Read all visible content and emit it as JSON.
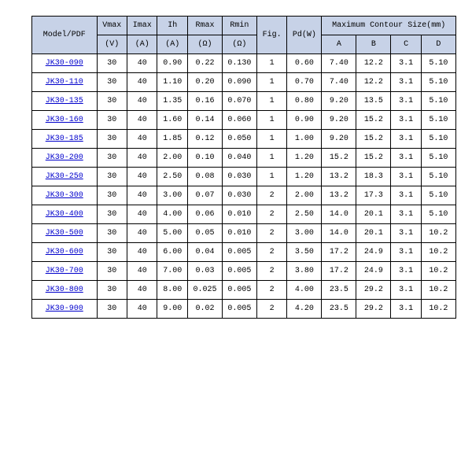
{
  "colors": {
    "header_bg": "#c7d2e7",
    "border": "#000000",
    "link": "#0000cc",
    "background": "#ffffff"
  },
  "header": {
    "model": "Model/PDF",
    "vmax": "Vmax",
    "vmax_unit": "(V)",
    "imax": "Imax",
    "imax_unit": "(A)",
    "ih": "Ih",
    "ih_unit": "(A)",
    "rmax": "Rmax",
    "rmax_unit": "(Ω)",
    "rmin": "Rmin",
    "rmin_unit": "(Ω)",
    "fig": "Fig.",
    "pd": "Pd(W)",
    "contour": "Maximum Contour Size(mm)",
    "a": "A",
    "b": "B",
    "c": "C",
    "d": "D"
  },
  "rows": [
    {
      "model": "JK30-090",
      "vmax": "30",
      "imax": "40",
      "ih": "0.90",
      "rmax": "0.22",
      "rmin": "0.130",
      "fig": "1",
      "pd": "0.60",
      "a": "7.40",
      "b": "12.2",
      "c": "3.1",
      "d": "5.10"
    },
    {
      "model": "JK30-110",
      "vmax": "30",
      "imax": "40",
      "ih": "1.10",
      "rmax": "0.20",
      "rmin": "0.090",
      "fig": "1",
      "pd": "0.70",
      "a": "7.40",
      "b": "12.2",
      "c": "3.1",
      "d": "5.10"
    },
    {
      "model": "JK30-135",
      "vmax": "30",
      "imax": "40",
      "ih": "1.35",
      "rmax": "0.16",
      "rmin": "0.070",
      "fig": "1",
      "pd": "0.80",
      "a": "9.20",
      "b": "13.5",
      "c": "3.1",
      "d": "5.10"
    },
    {
      "model": "JK30-160",
      "vmax": "30",
      "imax": "40",
      "ih": "1.60",
      "rmax": "0.14",
      "rmin": "0.060",
      "fig": "1",
      "pd": "0.90",
      "a": "9.20",
      "b": "15.2",
      "c": "3.1",
      "d": "5.10"
    },
    {
      "model": "JK30-185",
      "vmax": "30",
      "imax": "40",
      "ih": "1.85",
      "rmax": "0.12",
      "rmin": "0.050",
      "fig": "1",
      "pd": "1.00",
      "a": "9.20",
      "b": "15.2",
      "c": "3.1",
      "d": "5.10"
    },
    {
      "model": "JK30-200",
      "vmax": "30",
      "imax": "40",
      "ih": "2.00",
      "rmax": "0.10",
      "rmin": "0.040",
      "fig": "1",
      "pd": "1.20",
      "a": "15.2",
      "b": "15.2",
      "c": "3.1",
      "d": "5.10"
    },
    {
      "model": "JK30-250",
      "vmax": "30",
      "imax": "40",
      "ih": "2.50",
      "rmax": "0.08",
      "rmin": "0.030",
      "fig": "1",
      "pd": "1.20",
      "a": "13.2",
      "b": "18.3",
      "c": "3.1",
      "d": "5.10"
    },
    {
      "model": "JK30-300",
      "vmax": "30",
      "imax": "40",
      "ih": "3.00",
      "rmax": "0.07",
      "rmin": "0.030",
      "fig": "2",
      "pd": "2.00",
      "a": "13.2",
      "b": "17.3",
      "c": "3.1",
      "d": "5.10"
    },
    {
      "model": "JK30-400",
      "vmax": "30",
      "imax": "40",
      "ih": "4.00",
      "rmax": "0.06",
      "rmin": "0.010",
      "fig": "2",
      "pd": "2.50",
      "a": "14.0",
      "b": "20.1",
      "c": "3.1",
      "d": "5.10"
    },
    {
      "model": "JK30-500",
      "vmax": "30",
      "imax": "40",
      "ih": "5.00",
      "rmax": "0.05",
      "rmin": "0.010",
      "fig": "2",
      "pd": "3.00",
      "a": "14.0",
      "b": "20.1",
      "c": "3.1",
      "d": "10.2"
    },
    {
      "model": "JK30-600",
      "vmax": "30",
      "imax": "40",
      "ih": "6.00",
      "rmax": "0.04",
      "rmin": "0.005",
      "fig": "2",
      "pd": "3.50",
      "a": "17.2",
      "b": "24.9",
      "c": "3.1",
      "d": "10.2"
    },
    {
      "model": "JK30-700",
      "vmax": "30",
      "imax": "40",
      "ih": "7.00",
      "rmax": "0.03",
      "rmin": "0.005",
      "fig": "2",
      "pd": "3.80",
      "a": "17.2",
      "b": "24.9",
      "c": "3.1",
      "d": "10.2"
    },
    {
      "model": "JK30-800",
      "vmax": "30",
      "imax": "40",
      "ih": "8.00",
      "rmax": "0.025",
      "rmin": "0.005",
      "fig": "2",
      "pd": "4.00",
      "a": "23.5",
      "b": "29.2",
      "c": "3.1",
      "d": "10.2"
    },
    {
      "model": "JK30-900",
      "vmax": "30",
      "imax": "40",
      "ih": "9.00",
      "rmax": "0.02",
      "rmin": "0.005",
      "fig": "2",
      "pd": "4.20",
      "a": "23.5",
      "b": "29.2",
      "c": "3.1",
      "d": "10.2"
    }
  ]
}
